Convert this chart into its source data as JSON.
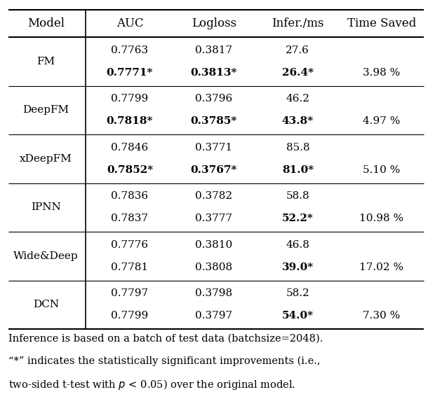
{
  "headers": [
    "Model",
    "AUC",
    "Logloss",
    "Infer./ms",
    "Time Saved"
  ],
  "rows": [
    {
      "model": "FM",
      "baseline": [
        "0.7763",
        "0.3817",
        "27.6",
        ""
      ],
      "autofield": [
        "0.7771*",
        "0.3813*",
        "26.4*",
        "3.98 %"
      ],
      "autofield_bold": [
        true,
        true,
        true,
        false
      ]
    },
    {
      "model": "DeepFM",
      "baseline": [
        "0.7799",
        "0.3796",
        "46.2",
        ""
      ],
      "autofield": [
        "0.7818*",
        "0.3785*",
        "43.8*",
        "4.97 %"
      ],
      "autofield_bold": [
        true,
        true,
        true,
        false
      ]
    },
    {
      "model": "xDeepFM",
      "baseline": [
        "0.7846",
        "0.3771",
        "85.8",
        ""
      ],
      "autofield": [
        "0.7852*",
        "0.3767*",
        "81.0*",
        "5.10 %"
      ],
      "autofield_bold": [
        true,
        true,
        true,
        false
      ]
    },
    {
      "model": "IPNN",
      "baseline": [
        "0.7836",
        "0.3782",
        "58.8",
        ""
      ],
      "autofield": [
        "0.7837",
        "0.3777",
        "52.2*",
        "10.98 %"
      ],
      "autofield_bold": [
        false,
        false,
        true,
        false
      ]
    },
    {
      "model": "Wide&Deep",
      "baseline": [
        "0.7776",
        "0.3810",
        "46.8",
        ""
      ],
      "autofield": [
        "0.7781",
        "0.3808",
        "39.0*",
        "17.02 %"
      ],
      "autofield_bold": [
        false,
        false,
        true,
        false
      ]
    },
    {
      "model": "DCN",
      "baseline": [
        "0.7797",
        "0.3798",
        "58.2",
        ""
      ],
      "autofield": [
        "0.7799",
        "0.3797",
        "54.0*",
        "7.30 %"
      ],
      "autofield_bold": [
        false,
        false,
        true,
        false
      ]
    }
  ],
  "footnotes": [
    "Inference is based on a batch of test data (batchsize=2048).",
    "“*” indicates the statistically significant improvements (i.e.,",
    "two-sided t-test with $p$ < 0.05) over the original model."
  ],
  "background_color": "#ffffff",
  "text_color": "#000000",
  "line_color": "#000000",
  "font_size": 11.0,
  "header_font_size": 12.0
}
